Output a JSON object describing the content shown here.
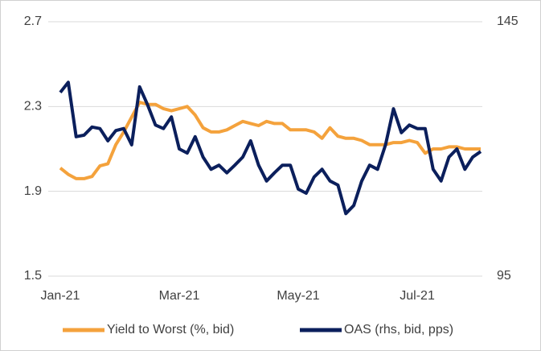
{
  "chart_data": {
    "type": "line",
    "categories": [
      "Jan-21",
      null,
      null,
      null,
      null,
      null,
      null,
      null,
      null,
      null,
      null,
      null,
      null,
      null,
      null,
      "Mar-21",
      null,
      null,
      null,
      null,
      null,
      null,
      null,
      null,
      null,
      null,
      null,
      null,
      null,
      null,
      "May-21",
      null,
      null,
      null,
      null,
      null,
      null,
      null,
      null,
      null,
      null,
      null,
      null,
      null,
      null,
      "Jul-21",
      null,
      null,
      null,
      null,
      null,
      null,
      null,
      null
    ],
    "series": [
      {
        "name": "Yield to Worst (%, bid)",
        "color": "#f4a23c",
        "values": [
          2.01,
          1.98,
          1.96,
          1.96,
          1.97,
          2.02,
          2.03,
          2.12,
          2.18,
          2.25,
          2.32,
          2.31,
          2.31,
          2.29,
          2.28,
          2.29,
          2.3,
          2.26,
          2.2,
          2.18,
          2.18,
          2.19,
          2.21,
          2.23,
          2.22,
          2.21,
          2.23,
          2.22,
          2.22,
          2.19,
          2.19,
          2.19,
          2.18,
          2.15,
          2.2,
          2.16,
          2.15,
          2.15,
          2.14,
          2.12,
          2.12,
          2.12,
          2.13,
          2.13,
          2.14,
          2.13,
          2.08,
          2.1,
          2.1,
          2.11,
          2.11,
          2.1,
          2.1,
          2.1
        ]
      },
      {
        "name": "OAS (rhs, bid, pps)",
        "color": "#0b1f5c",
        "axis": "y2",
        "values": [
          131.1,
          133.1,
          122.4,
          122.7,
          124.3,
          124,
          121.6,
          123.6,
          124,
          120.8,
          132.2,
          128.7,
          124.7,
          124,
          126.3,
          120,
          119.2,
          122.4,
          118.4,
          116,
          116.8,
          115.3,
          116.8,
          118.4,
          121.6,
          116.8,
          113.7,
          115.3,
          116.8,
          116.8,
          112.1,
          111.3,
          114.5,
          116,
          113.7,
          112.9,
          107.3,
          108.9,
          113.7,
          116.8,
          116,
          120.8,
          127.9,
          123.2,
          124.7,
          124,
          124,
          116,
          113.7,
          118.4,
          120,
          116,
          118.4,
          119.5
        ]
      }
    ],
    "ylim": [
      1.5,
      2.7
    ],
    "yticks": [
      1.5,
      1.9,
      2.3,
      2.7
    ],
    "y2lim": [
      95,
      145
    ],
    "y2ticks": [
      95,
      145
    ],
    "grid": true,
    "legend": "bottom"
  }
}
